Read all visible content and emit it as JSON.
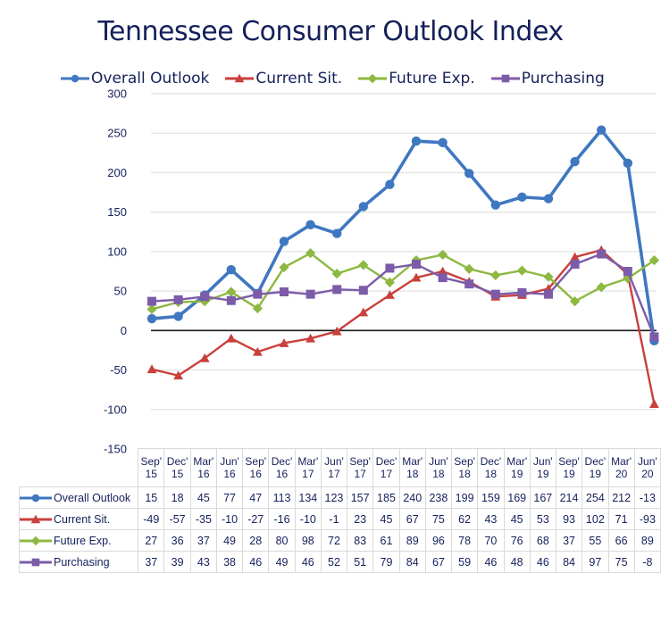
{
  "chart_data": {
    "type": "line",
    "title": "Tennessee Consumer Outlook Index",
    "xlabel": "",
    "ylabel": "",
    "ylim": [
      -150,
      300
    ],
    "yticks": [
      300,
      250,
      200,
      150,
      100,
      50,
      0,
      -50,
      -100,
      -150
    ],
    "grid": true,
    "legend_position": "top",
    "categories": [
      "Sep' 15",
      "Dec' 15",
      "Mar' 16",
      "Jun' 16",
      "Sep' 16",
      "Dec' 16",
      "Mar' 17",
      "Jun' 17",
      "Sep' 17",
      "Dec' 17",
      "Mar' 18",
      "Jun' 18",
      "Sep' 18",
      "Dec' 18",
      "Mar' 19",
      "Jun' 19",
      "Sep' 19",
      "Dec' 19",
      "Mar' 20",
      "Jun' 20"
    ],
    "category_lines": [
      [
        "Sep'",
        "15"
      ],
      [
        "Dec'",
        "15"
      ],
      [
        "Mar'",
        "16"
      ],
      [
        "Jun'",
        "16"
      ],
      [
        "Sep'",
        "16"
      ],
      [
        "Dec'",
        "16"
      ],
      [
        "Mar'",
        "17"
      ],
      [
        "Jun'",
        "17"
      ],
      [
        "Sep'",
        "17"
      ],
      [
        "Dec'",
        "17"
      ],
      [
        "Mar'",
        "18"
      ],
      [
        "Jun'",
        "18"
      ],
      [
        "Sep'",
        "18"
      ],
      [
        "Dec'",
        "18"
      ],
      [
        "Mar'",
        "19"
      ],
      [
        "Jun'",
        "19"
      ],
      [
        "Sep'",
        "19"
      ],
      [
        "Dec'",
        "19"
      ],
      [
        "Mar'",
        "20"
      ],
      [
        "Jun'",
        "20"
      ]
    ],
    "series": [
      {
        "name": "Overall Outlook",
        "color": "#3f77c0",
        "marker": "circle",
        "values": [
          15,
          18,
          45,
          77,
          47,
          113,
          134,
          123,
          157,
          185,
          240,
          238,
          199,
          159,
          169,
          167,
          214,
          254,
          212,
          -13
        ]
      },
      {
        "name": "Current Sit.",
        "color": "#c9403c",
        "marker": "triangle",
        "values": [
          -49,
          -57,
          -35,
          -10,
          -27,
          -16,
          -10,
          -1,
          23,
          45,
          67,
          75,
          62,
          43,
          45,
          53,
          93,
          102,
          71,
          -93
        ]
      },
      {
        "name": "Future Exp.",
        "color": "#8db842",
        "marker": "diamond",
        "values": [
          27,
          36,
          37,
          49,
          28,
          80,
          98,
          72,
          83,
          61,
          89,
          96,
          78,
          70,
          76,
          68,
          37,
          55,
          66,
          89
        ]
      },
      {
        "name": "Purchasing",
        "color": "#7c5ca8",
        "marker": "square",
        "values": [
          37,
          39,
          43,
          38,
          46,
          49,
          46,
          52,
          51,
          79,
          84,
          67,
          59,
          46,
          48,
          46,
          84,
          97,
          75,
          -8
        ]
      }
    ]
  }
}
